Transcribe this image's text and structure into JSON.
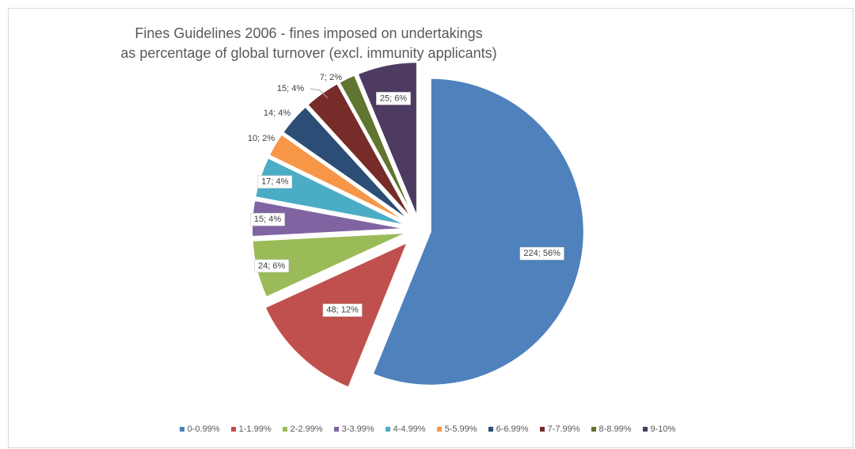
{
  "chart_data": {
    "type": "pie",
    "title_line1": "Fines Guidelines 2006 - fines imposed on undertakings",
    "title_line2": "as percentage of global turnover (excl. immunity applicants)",
    "legend_position": "bottom",
    "slices": [
      {
        "name": "0-0.99%",
        "value": 224,
        "percent": 56,
        "label": "224; 56%",
        "color": "#4F81BD"
      },
      {
        "name": "1-1.99%",
        "value": 48,
        "percent": 12,
        "label": "48; 12%",
        "color": "#C0504D"
      },
      {
        "name": "2-2.99%",
        "value": 24,
        "percent": 6,
        "label": "24; 6%",
        "color": "#9BBB59"
      },
      {
        "name": "3-3.99%",
        "value": 15,
        "percent": 4,
        "label": "15; 4%",
        "color": "#8064A2"
      },
      {
        "name": "4-4.99%",
        "value": 17,
        "percent": 4,
        "label": "17; 4%",
        "color": "#4BACC6"
      },
      {
        "name": "5-5.99%",
        "value": 10,
        "percent": 2,
        "label": "10; 2%",
        "color": "#F79646"
      },
      {
        "name": "6-6.99%",
        "value": 14,
        "percent": 4,
        "label": "14; 4%",
        "color": "#2C4D75"
      },
      {
        "name": "7-7.99%",
        "value": 15,
        "percent": 4,
        "label": "15; 4%",
        "color": "#772C2A"
      },
      {
        "name": "8-8.99%",
        "value": 7,
        "percent": 2,
        "label": "7; 2%",
        "color": "#5F7530"
      },
      {
        "name": "9-10%",
        "value": 25,
        "percent": 6,
        "label": "25; 6%",
        "color": "#4D3B62"
      }
    ]
  }
}
